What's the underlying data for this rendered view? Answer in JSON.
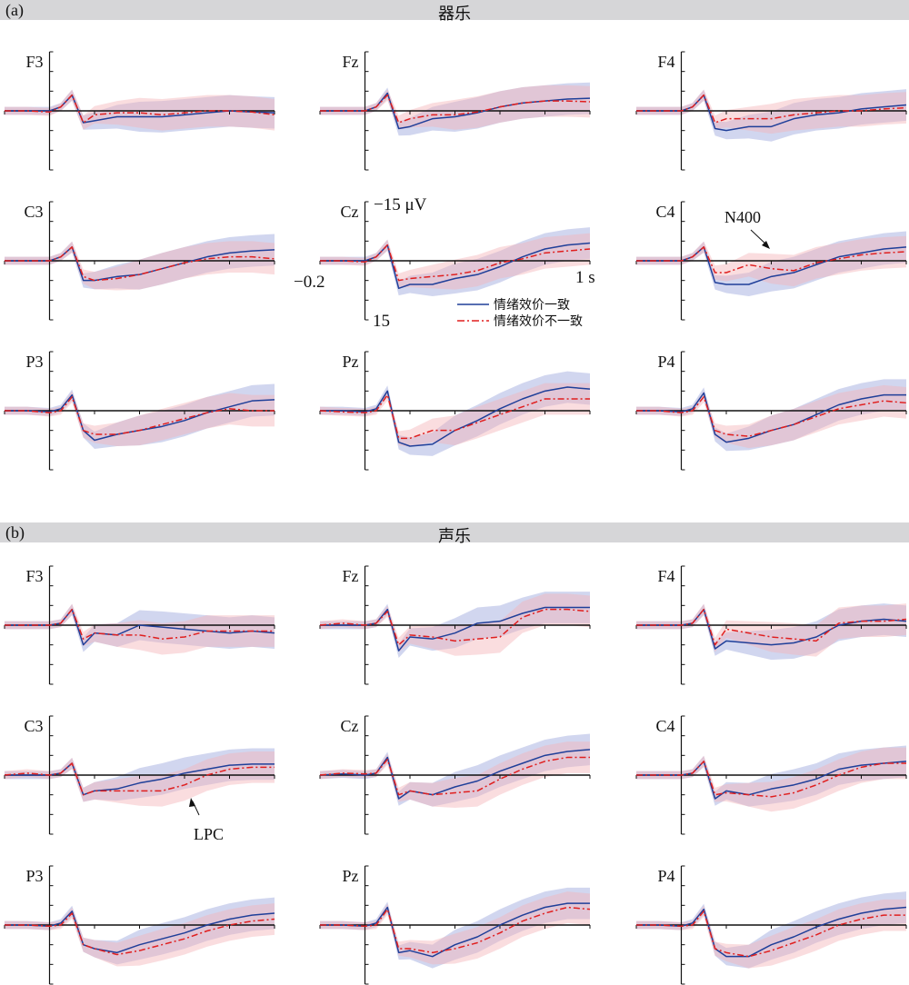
{
  "sections": [
    {
      "tag": "(a)",
      "title": "器乐"
    },
    {
      "tag": "(b)",
      "title": "声乐"
    }
  ],
  "colors": {
    "congruent": "#1f3f99",
    "incongruent": "#e01f1f",
    "congruent_band": "#9aa3dc",
    "incongruent_band": "#f4b3b8",
    "header_bg": "#d6d6d8"
  },
  "axis_labels": {
    "y_top": "−15 μV",
    "y_bottom": "15",
    "x_left": "−0.2",
    "x_right": "1 s"
  },
  "legend": [
    {
      "label": "情绪效价一致",
      "style": "solid"
    },
    {
      "label": "情绪效价不一致",
      "style": "dash-dot"
    }
  ],
  "annotations": {
    "n400": "N400",
    "lpc": "LPC"
  },
  "chart_data": {
    "type": "line",
    "xlim": [
      -0.2,
      1.0
    ],
    "ylim": [
      -15,
      15
    ],
    "y_inverted": true,
    "x_ticks": [
      -0.2,
      0,
      0.2,
      0.4,
      0.6,
      0.8,
      1.0
    ],
    "y_ticks": [
      -15,
      -10,
      -5,
      0,
      5,
      10,
      15
    ],
    "x": [
      -0.2,
      -0.1,
      0,
      0.05,
      0.1,
      0.15,
      0.2,
      0.3,
      0.4,
      0.5,
      0.6,
      0.7,
      0.8,
      0.9,
      1.0
    ],
    "series_names": [
      "情绪效价一致",
      "情绪效价不一致"
    ],
    "panels": [
      {
        "section": 0,
        "electrode": "F3",
        "congruent": [
          0,
          0,
          0,
          -1,
          -4,
          3,
          2.5,
          1.5,
          1.5,
          1.5,
          1,
          0.5,
          0,
          0.3,
          0.5
        ],
        "incongruent": [
          0,
          0,
          0.3,
          -1,
          -4,
          3,
          1,
          0.5,
          0.5,
          1,
          0.5,
          0,
          0,
          0.3,
          1
        ]
      },
      {
        "section": 0,
        "electrode": "Fz",
        "congruent": [
          0,
          0,
          0,
          -1,
          -4.5,
          4.5,
          4,
          2,
          1.5,
          0.5,
          -1,
          -2,
          -2.5,
          -3,
          -3.2
        ],
        "incongruent": [
          0,
          0,
          0,
          -1,
          -4,
          3,
          2,
          1,
          1,
          0.3,
          -1,
          -2,
          -2.5,
          -2.5,
          -2.3
        ]
      },
      {
        "section": 0,
        "electrode": "F4",
        "congruent": [
          0,
          0,
          0,
          -1,
          -4,
          4.5,
          5,
          4,
          4,
          2,
          1,
          0.5,
          -0.5,
          -1,
          -1.5
        ],
        "incongruent": [
          0,
          0,
          0,
          -1,
          -4,
          3,
          2,
          2,
          2,
          1,
          0.5,
          0,
          0,
          -0.5,
          -0.8
        ]
      },
      {
        "section": 0,
        "electrode": "C3",
        "congruent": [
          0,
          0,
          0,
          -1,
          -3.5,
          5,
          5,
          4,
          3.5,
          2,
          0.5,
          -1,
          -2,
          -2.5,
          -2.8
        ],
        "incongruent": [
          0,
          0,
          0,
          -1,
          -3.5,
          4,
          5,
          4.5,
          3.5,
          2,
          0.5,
          -0.5,
          -1,
          -1,
          -0.5
        ]
      },
      {
        "section": 0,
        "electrode": "Cz",
        "congruent": [
          0,
          0,
          0,
          -1,
          -4,
          7,
          6,
          6,
          4.5,
          3.5,
          1.5,
          -1,
          -3,
          -4,
          -4.5
        ],
        "incongruent": [
          0,
          0,
          0.3,
          -1,
          -4,
          5,
          4.5,
          4,
          3.5,
          2.5,
          0.5,
          -0.5,
          -2,
          -2.5,
          -3
        ]
      },
      {
        "section": 0,
        "electrode": "C4",
        "congruent": [
          0,
          0,
          0,
          -1,
          -3.5,
          5.5,
          6,
          6,
          4,
          3,
          1,
          -1,
          -2,
          -3,
          -3.5
        ],
        "incongruent": [
          0,
          0,
          0,
          -1,
          -3.5,
          3,
          3,
          1,
          2,
          2.5,
          0.5,
          -0.5,
          -1.5,
          -2,
          -2.3
        ]
      },
      {
        "section": 0,
        "electrode": "P3",
        "congruent": [
          0,
          0,
          0.3,
          -0.5,
          -4,
          5,
          7.5,
          6,
          5,
          4,
          2.5,
          0.5,
          -1,
          -2.5,
          -2.8
        ],
        "incongruent": [
          0,
          0,
          0.5,
          0,
          -3.5,
          5,
          6,
          6,
          5,
          3.5,
          2,
          0.5,
          -0.5,
          0,
          0
        ]
      },
      {
        "section": 0,
        "electrode": "Pz",
        "congruent": [
          0,
          0,
          0.3,
          -0.5,
          -5,
          8,
          9,
          8.5,
          5,
          2.5,
          -0.5,
          -3,
          -5,
          -6,
          -5.5
        ],
        "incongruent": [
          0,
          0.3,
          0.5,
          0,
          -4,
          7,
          7,
          5,
          5,
          3,
          1,
          -1,
          -3,
          -3,
          -3
        ]
      },
      {
        "section": 0,
        "electrode": "P4",
        "congruent": [
          0,
          0,
          0.3,
          -0.5,
          -4.5,
          6,
          8,
          7,
          5,
          3.5,
          1,
          -1.5,
          -3,
          -4,
          -4
        ],
        "incongruent": [
          0,
          0,
          0.5,
          0,
          -3.5,
          5,
          6,
          6.5,
          5,
          3.5,
          1.5,
          -0.5,
          -1.5,
          -2.5,
          -2
        ]
      },
      {
        "section": 1,
        "electrode": "F3",
        "congruent": [
          0,
          0,
          0,
          -0.5,
          -4,
          5,
          2,
          2.5,
          0,
          0.5,
          1,
          1.5,
          2,
          1.5,
          2
        ],
        "incongruent": [
          0,
          0,
          0,
          -0.5,
          -4,
          3.5,
          2,
          2.5,
          2.5,
          3.5,
          3,
          1.5,
          1.5,
          1.5,
          1.5
        ]
      },
      {
        "section": 1,
        "electrode": "Fz",
        "congruent": [
          0,
          0,
          0,
          -0.5,
          -4,
          6.5,
          3,
          3.5,
          2,
          -0.5,
          -1,
          -3,
          -4.5,
          -4.5,
          -4.5
        ],
        "incongruent": [
          0,
          -0.5,
          0,
          -0.5,
          -3.5,
          5,
          2.5,
          3,
          4,
          3.5,
          3,
          -2,
          -4,
          -4,
          -3.5
        ]
      },
      {
        "section": 1,
        "electrode": "F4",
        "congruent": [
          0,
          0,
          0,
          -0.5,
          -4,
          6,
          4,
          4.5,
          5,
          4.5,
          3,
          0,
          -1,
          -1.5,
          -1
        ],
        "incongruent": [
          0,
          0,
          0,
          -0.5,
          -4,
          5,
          1,
          2,
          3,
          3.5,
          4,
          -0.5,
          -1,
          -1,
          -1.5
        ]
      },
      {
        "section": 1,
        "electrode": "C3",
        "congruent": [
          0,
          0,
          0,
          -0.5,
          -3,
          5,
          4,
          3.5,
          2,
          1,
          -0.5,
          -1.5,
          -2.5,
          -2.8,
          -2.8
        ],
        "incongruent": [
          0,
          -0.5,
          0,
          -0.5,
          -3,
          5,
          4,
          4,
          4,
          4,
          2.5,
          0,
          -1.5,
          -2,
          -2
        ]
      },
      {
        "section": 1,
        "electrode": "Cz",
        "congruent": [
          0,
          -0.3,
          0,
          -0.5,
          -4.5,
          6,
          4,
          5,
          3,
          1.5,
          -1,
          -3,
          -5,
          -6,
          -6.5
        ],
        "incongruent": [
          0,
          -0.5,
          -0.3,
          -0.5,
          -4,
          5,
          4,
          5,
          4.5,
          4,
          1,
          -1.5,
          -3.5,
          -4.5,
          -4.5
        ]
      },
      {
        "section": 1,
        "electrode": "C4",
        "congruent": [
          0,
          0,
          0,
          -0.5,
          -3.5,
          6,
          4,
          5,
          3.5,
          2.5,
          1,
          -1.5,
          -2.5,
          -3,
          -3.5
        ],
        "incongruent": [
          0,
          0,
          0,
          -0.5,
          -3.5,
          5,
          4.5,
          5,
          5.5,
          4.5,
          2.5,
          0,
          -2,
          -3,
          -3
        ]
      },
      {
        "section": 1,
        "electrode": "P3",
        "congruent": [
          0,
          0,
          0.3,
          -0.5,
          -3.5,
          5,
          6,
          7,
          5,
          3.5,
          2,
          0,
          -1.5,
          -2.5,
          -3
        ],
        "incongruent": [
          0,
          0,
          0.3,
          0,
          -3,
          5,
          6,
          7.5,
          6.5,
          5,
          3.5,
          1.5,
          0,
          -1,
          -1.5
        ]
      },
      {
        "section": 1,
        "electrode": "Pz",
        "congruent": [
          0,
          0,
          0.3,
          -0.5,
          -4.5,
          7,
          6.5,
          8,
          5,
          3,
          0,
          -2.5,
          -4.5,
          -5.5,
          -5.5
        ],
        "incongruent": [
          0,
          0,
          0.3,
          0,
          -4,
          6,
          6,
          7,
          6,
          4.5,
          2,
          -1,
          -3,
          -4.5,
          -4
        ]
      },
      {
        "section": 1,
        "electrode": "P4",
        "congruent": [
          0,
          0,
          0.3,
          -0.5,
          -4,
          6,
          8,
          8,
          5,
          3,
          0.5,
          -1.5,
          -3,
          -4,
          -4.5
        ],
        "incongruent": [
          0,
          0,
          0.3,
          0,
          -3.5,
          6,
          7,
          8,
          6.5,
          4.5,
          2.5,
          0,
          -1.5,
          -2.5,
          -2.5
        ]
      }
    ]
  }
}
